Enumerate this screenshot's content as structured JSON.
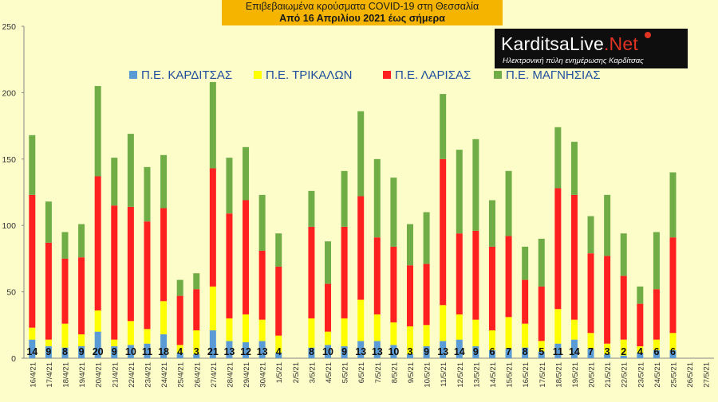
{
  "header": {
    "line1": "Επιβεβαιωμένα κρούσματα COVID-19 στη Θεσσαλία",
    "line2": "Από 16 Απριλίου 2021 έως σήμερα"
  },
  "logo": {
    "brand_a": "KarditsaLive",
    "brand_b": ".Net",
    "tagline": "Ηλεκτρονική πύλη ενημέρωσης Καρδίτσας"
  },
  "chart_data": {
    "type": "bar",
    "stacked": true,
    "ylim": [
      0,
      250
    ],
    "yticks": [
      0,
      50,
      100,
      150,
      200,
      250
    ],
    "grid": false,
    "legend_position": "top-left",
    "categories": [
      "16/4/21",
      "17/4/21",
      "18/4/21",
      "19/4/21",
      "20/4/21",
      "21/4/21",
      "22/4/21",
      "23/4/21",
      "24/4/21",
      "25/4/21",
      "26/4/21",
      "27/4/21",
      "28/4/21",
      "29/4/21",
      "30/4/21",
      "1/5/21",
      "2/5/21",
      "3/5/21",
      "4/5/21",
      "5/5/21",
      "6/5/21",
      "7/5/21",
      "8/5/21",
      "9/5/21",
      "10/5/21",
      "11/5/21",
      "12/5/21",
      "13/5/21",
      "14/5/21",
      "15/5/21",
      "16/5/21",
      "17/5/21",
      "18/5/21",
      "19/5/21",
      "20/5/21",
      "21/5/21",
      "22/5/21",
      "23/5/21",
      "24/5/21",
      "25/5/21",
      "26/5/21",
      "27/5/21"
    ],
    "series": [
      {
        "name": "Π.Ε. ΚΑΡΔΙΤΣΑΣ",
        "color": "#5b9bd5",
        "values": [
          14,
          9,
          8,
          9,
          20,
          9,
          10,
          11,
          18,
          4,
          3,
          21,
          13,
          12,
          13,
          4,
          null,
          8,
          10,
          9,
          13,
          13,
          10,
          3,
          9,
          13,
          14,
          9,
          6,
          7,
          8,
          5,
          11,
          14,
          7,
          3,
          2,
          4,
          6,
          6,
          null,
          null
        ]
      },
      {
        "name": "Π.Ε. ΤΡΙΚΑΛΩΝ",
        "color": "#ffff00",
        "values": [
          9,
          5,
          18,
          9,
          16,
          5,
          18,
          11,
          25,
          6,
          18,
          33,
          17,
          21,
          16,
          13,
          null,
          22,
          10,
          21,
          31,
          20,
          17,
          21,
          16,
          27,
          19,
          20,
          15,
          24,
          18,
          8,
          26,
          15,
          12,
          8,
          12,
          5,
          8,
          13,
          null,
          null
        ]
      },
      {
        "name": "Π.Ε. ΛΑΡΙΣΑΣ",
        "color": "#ff2020",
        "values": [
          100,
          73,
          49,
          58,
          101,
          101,
          86,
          81,
          70,
          37,
          31,
          89,
          79,
          86,
          52,
          52,
          null,
          69,
          36,
          69,
          78,
          58,
          57,
          46,
          46,
          110,
          61,
          67,
          63,
          61,
          33,
          41,
          91,
          94,
          60,
          66,
          48,
          32,
          38,
          72,
          null,
          null
        ]
      },
      {
        "name": "Π.Ε. ΜΑΓΝΗΣΙΑΣ",
        "color": "#70ad47",
        "values": [
          45,
          31,
          20,
          25,
          68,
          36,
          55,
          41,
          40,
          12,
          12,
          65,
          42,
          40,
          42,
          25,
          null,
          27,
          32,
          42,
          64,
          59,
          52,
          31,
          39,
          49,
          63,
          69,
          35,
          49,
          25,
          36,
          46,
          40,
          28,
          46,
          32,
          13,
          43,
          49,
          null,
          null
        ]
      }
    ]
  }
}
